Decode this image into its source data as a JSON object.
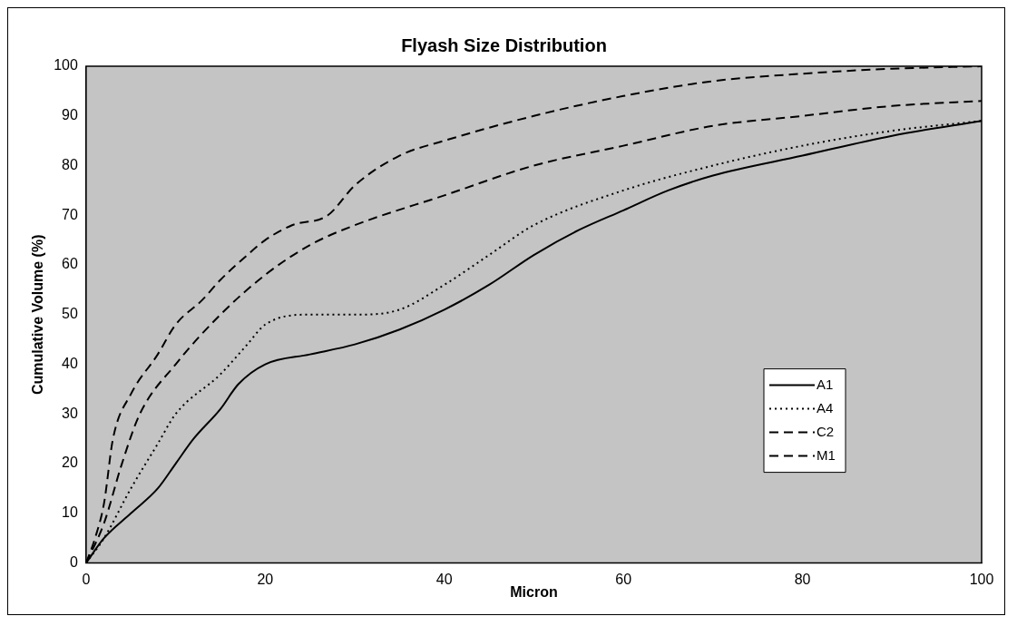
{
  "chart_data": {
    "type": "line",
    "title": "Flyash Size Distribution",
    "xlabel": "Micron",
    "ylabel": "Cumulative Volume (%)",
    "xlim": [
      0,
      100
    ],
    "xticks": [
      0,
      20,
      40,
      60,
      80,
      100
    ],
    "ylim": [
      0,
      100
    ],
    "yticks": [
      0,
      10,
      20,
      30,
      40,
      50,
      60,
      70,
      80,
      90,
      100
    ],
    "grid": false,
    "legend": "bottom right",
    "marker": "none",
    "series": [
      {
        "name": "A1",
        "color": "#000000",
        "line_style": "solid",
        "x": [
          0,
          2,
          5,
          8,
          10,
          12,
          15,
          17,
          20,
          25,
          30,
          35,
          40,
          45,
          50,
          55,
          60,
          65,
          70,
          80,
          90,
          100
        ],
        "values": [
          0,
          5,
          10,
          15,
          20,
          25,
          31,
          36,
          40,
          42,
          44,
          47,
          51,
          56,
          62,
          67,
          71,
          75,
          78,
          82,
          86,
          89
        ]
      },
      {
        "name": "A4",
        "color": "#000000",
        "line_style": "dotted",
        "x": [
          0,
          2,
          5,
          8,
          10,
          15,
          18,
          20,
          25,
          30,
          35,
          40,
          45,
          50,
          60,
          70,
          80,
          90,
          100
        ],
        "values": [
          0,
          5,
          15,
          24,
          30,
          38,
          44,
          48,
          50,
          50,
          51,
          56,
          62,
          68,
          75,
          80,
          84,
          87,
          89
        ]
      },
      {
        "name": "C2",
        "color": "#000000",
        "line_style": "dashed",
        "x": [
          0,
          2,
          4,
          6,
          10,
          15,
          20,
          25,
          30,
          40,
          50,
          60,
          70,
          80,
          90,
          100
        ],
        "values": [
          0,
          8,
          20,
          30,
          40,
          50,
          58,
          64,
          68,
          74,
          80,
          84,
          88,
          90,
          92,
          93
        ]
      },
      {
        "name": "M1",
        "color": "#000000",
        "line_style": "dashed",
        "x": [
          0,
          1,
          2,
          3,
          5,
          8,
          10,
          13,
          15,
          18,
          20,
          23,
          27,
          30,
          35,
          40,
          50,
          60,
          70,
          80,
          90,
          100
        ],
        "values": [
          0,
          5,
          12,
          25,
          34,
          42,
          48,
          53,
          57,
          62,
          65,
          68,
          70,
          76,
          82,
          85,
          90,
          94,
          97,
          98.5,
          99.5,
          100
        ]
      }
    ]
  }
}
